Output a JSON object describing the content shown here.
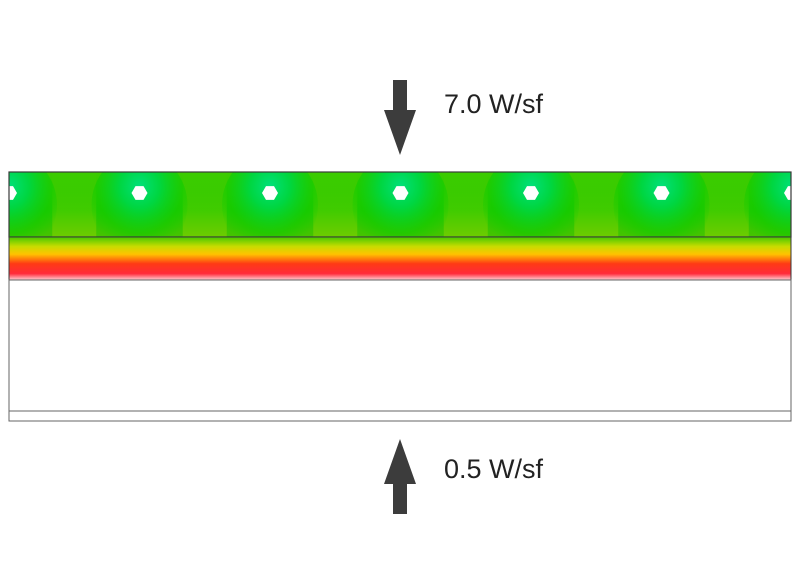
{
  "loads": {
    "top": {
      "value": "7.0 W/sf",
      "direction": "down"
    },
    "bottom": {
      "value": "0.5 W/sf",
      "direction": "up"
    }
  },
  "colors": {
    "arrow": "#3c3c3c",
    "outline": "#4a4a4a",
    "cool": "#00d200",
    "mid": "#ffd800",
    "hot": "#ee1e1e",
    "tube": "#ffffff"
  },
  "tube_icon": "hexagon-tube-icon",
  "tube_count": 7
}
